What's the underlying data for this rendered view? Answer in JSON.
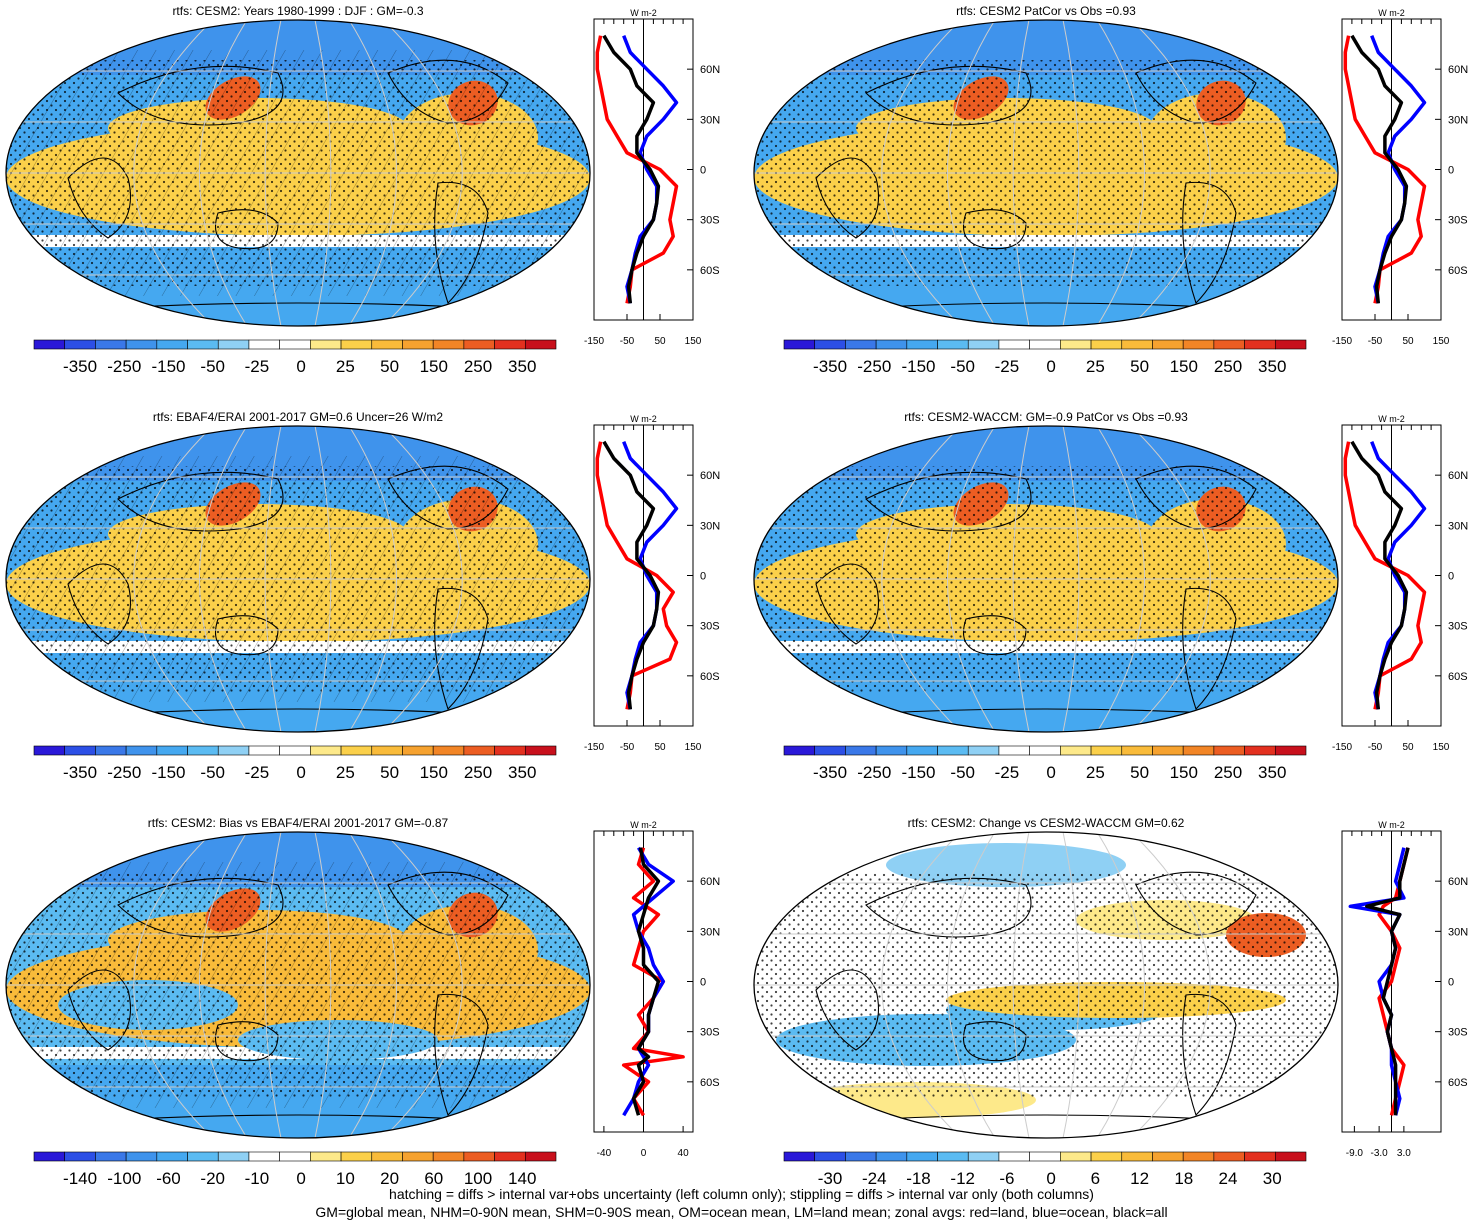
{
  "footer": {
    "line1": "hatching = diffs > internal var+obs uncertainty (left column only); stippling = diffs > internal var only (both columns)",
    "line2": "GM=global mean, NHM=0-90N mean, SHM=0-90S mean, OM=ocean mean, LM=land mean; zonal avgs: red=land, blue=ocean, black=all"
  },
  "palette": [
    "#2a18d8",
    "#2c4fe6",
    "#3a78e8",
    "#3f93ec",
    "#45a8f0",
    "#5bbbf2",
    "#8fd0f4",
    "#ffffff",
    "#ffffff",
    "#fde98a",
    "#fbd04a",
    "#f9bb3a",
    "#f6a22f",
    "#f28526",
    "#ec5d22",
    "#e3301f",
    "#c8101c"
  ],
  "zonal_colors": {
    "land": "#ff0000",
    "ocean": "#0000ff",
    "all": "#000000"
  },
  "chart_data": [
    {
      "type": "heatmap",
      "title": "rtfs: CESM2: Years 1980-1999 : DJF : GM=-0.3",
      "colorbar_labels": [
        "-350",
        "-250",
        "-150",
        "-50",
        "-25",
        "0",
        "25",
        "50",
        "150",
        "250",
        "350"
      ],
      "zonal": {
        "unit": "W m-2",
        "xlim": [
          -150,
          150
        ],
        "xticks": [
          "-150",
          "-50",
          "50",
          "150"
        ],
        "yticks": [
          "60N",
          "30N",
          "0",
          "30S",
          "60S"
        ],
        "lat": [
          -80,
          -70,
          -60,
          -50,
          -40,
          -30,
          -20,
          -10,
          0,
          10,
          20,
          30,
          40,
          50,
          60,
          70,
          80
        ],
        "land": [
          -50,
          -40,
          -35,
          60,
          90,
          80,
          90,
          100,
          50,
          -50,
          -80,
          -110,
          -120,
          -130,
          -140,
          -140,
          -130
        ],
        "ocean": [
          -40,
          -50,
          -35,
          -25,
          -10,
          30,
          40,
          40,
          10,
          -10,
          10,
          60,
          100,
          60,
          10,
          -40,
          -60
        ],
        "all": [
          -40,
          -45,
          -35,
          -20,
          0,
          30,
          40,
          45,
          20,
          -20,
          -20,
          10,
          30,
          -20,
          -40,
          -90,
          -120
        ]
      }
    },
    {
      "type": "heatmap",
      "title": "rtfs: CESM2 PatCor vs Obs =0.93",
      "colorbar_labels": [
        "-350",
        "-250",
        "-150",
        "-50",
        "-25",
        "0",
        "25",
        "50",
        "150",
        "250",
        "350"
      ],
      "zonal": {
        "unit": "W m-2",
        "xlim": [
          -150,
          150
        ],
        "xticks": [
          "-150",
          "-50",
          "50",
          "150"
        ],
        "yticks": [
          "60N",
          "30N",
          "0",
          "30S",
          "60S"
        ],
        "lat": [
          -80,
          -70,
          -60,
          -50,
          -40,
          -30,
          -20,
          -10,
          0,
          10,
          20,
          30,
          40,
          50,
          60,
          70,
          80
        ],
        "land": [
          -50,
          -40,
          -35,
          60,
          90,
          80,
          90,
          100,
          50,
          -50,
          -80,
          -110,
          -120,
          -130,
          -140,
          -140,
          -130
        ],
        "ocean": [
          -40,
          -50,
          -35,
          -25,
          -10,
          30,
          40,
          40,
          10,
          -10,
          10,
          60,
          100,
          60,
          10,
          -40,
          -60
        ],
        "all": [
          -40,
          -45,
          -35,
          -20,
          0,
          30,
          40,
          45,
          20,
          -20,
          -20,
          10,
          30,
          -20,
          -40,
          -90,
          -120
        ]
      }
    },
    {
      "type": "heatmap",
      "title": "rtfs: EBAF4/ERAI 2001-2017 GM=0.6 Uncer=26 W/m2",
      "colorbar_labels": [
        "-350",
        "-250",
        "-150",
        "-50",
        "-25",
        "0",
        "25",
        "50",
        "150",
        "250",
        "350"
      ],
      "zonal": {
        "unit": "W m-2",
        "xlim": [
          -150,
          150
        ],
        "xticks": [
          "-150",
          "-50",
          "50",
          "150"
        ],
        "yticks": [
          "60N",
          "30N",
          "0",
          "30S",
          "60S"
        ],
        "lat": [
          -80,
          -70,
          -60,
          -50,
          -40,
          -30,
          -20,
          -10,
          0,
          10,
          20,
          30,
          40,
          50,
          60,
          70,
          80
        ],
        "land": [
          -50,
          -40,
          -35,
          80,
          100,
          70,
          60,
          90,
          40,
          -50,
          -80,
          -110,
          -120,
          -130,
          -140,
          -140,
          -130
        ],
        "ocean": [
          -40,
          -50,
          -35,
          -25,
          -10,
          30,
          40,
          40,
          10,
          -10,
          10,
          60,
          100,
          60,
          10,
          -40,
          -60
        ],
        "all": [
          -40,
          -45,
          -35,
          -20,
          0,
          30,
          40,
          45,
          20,
          -20,
          -20,
          10,
          30,
          -20,
          -40,
          -90,
          -120
        ]
      }
    },
    {
      "type": "heatmap",
      "title": "rtfs: CESM2-WACCM: GM=-0.9 PatCor vs Obs =0.93",
      "colorbar_labels": [
        "-350",
        "-250",
        "-150",
        "-50",
        "-25",
        "0",
        "25",
        "50",
        "150",
        "250",
        "350"
      ],
      "zonal": {
        "unit": "W m-2",
        "xlim": [
          -150,
          150
        ],
        "xticks": [
          "-150",
          "-50",
          "50",
          "150"
        ],
        "yticks": [
          "60N",
          "30N",
          "0",
          "30S",
          "60S"
        ],
        "lat": [
          -80,
          -70,
          -60,
          -50,
          -40,
          -30,
          -20,
          -10,
          0,
          10,
          20,
          30,
          40,
          50,
          60,
          70,
          80
        ],
        "land": [
          -50,
          -40,
          -35,
          60,
          90,
          80,
          90,
          100,
          50,
          -50,
          -80,
          -110,
          -120,
          -130,
          -140,
          -140,
          -130
        ],
        "ocean": [
          -40,
          -50,
          -35,
          -25,
          -10,
          30,
          40,
          40,
          10,
          -10,
          10,
          60,
          100,
          60,
          10,
          -40,
          -60
        ],
        "all": [
          -40,
          -45,
          -35,
          -20,
          0,
          30,
          40,
          45,
          20,
          -20,
          -20,
          10,
          30,
          -20,
          -40,
          -90,
          -120
        ]
      }
    },
    {
      "type": "heatmap",
      "title": "rtfs: CESM2: Bias vs EBAF4/ERAI 2001-2017 GM=-0.87",
      "colorbar_labels": [
        "-140",
        "-100",
        "-60",
        "-20",
        "-10",
        "0",
        "10",
        "20",
        "60",
        "100",
        "140"
      ],
      "zonal": {
        "unit": "W m-2",
        "xlim": [
          -50,
          50
        ],
        "xticks": [
          "-40",
          "0",
          "40"
        ],
        "yticks": [
          "60N",
          "30N",
          "0",
          "30S",
          "60S"
        ],
        "lat": [
          -80,
          -70,
          -60,
          -50,
          -45,
          -40,
          -30,
          -20,
          -10,
          0,
          10,
          20,
          30,
          40,
          50,
          60,
          70,
          80
        ],
        "land": [
          0,
          -10,
          5,
          -20,
          40,
          -10,
          5,
          -5,
          10,
          20,
          -10,
          -5,
          0,
          15,
          -10,
          10,
          -5,
          0
        ],
        "ocean": [
          -20,
          -10,
          -5,
          5,
          0,
          -5,
          5,
          5,
          10,
          20,
          10,
          5,
          -5,
          -10,
          10,
          30,
          5,
          -5
        ],
        "all": [
          -5,
          -10,
          0,
          -5,
          5,
          -5,
          5,
          5,
          10,
          15,
          0,
          0,
          -5,
          0,
          5,
          15,
          0,
          -3
        ]
      }
    },
    {
      "type": "heatmap",
      "title": "rtfs: CESM2: Change vs CESM2-WACCM GM=0.62",
      "colorbar_labels": [
        "-30",
        "-24",
        "-18",
        "-12",
        "-6",
        "0",
        "6",
        "12",
        "18",
        "24",
        "30"
      ],
      "zonal": {
        "unit": "W m-2",
        "xlim": [
          -12,
          12
        ],
        "xticks": [
          "-9.0",
          "-3.0",
          "3.0"
        ],
        "yticks": [
          "60N",
          "30N",
          "0",
          "30S",
          "60S"
        ],
        "lat": [
          -80,
          -70,
          -60,
          -50,
          -40,
          -30,
          -20,
          -10,
          0,
          10,
          20,
          30,
          40,
          45,
          50,
          60,
          70,
          80
        ],
        "land": [
          0,
          1,
          2,
          3,
          0,
          -1,
          -2,
          -3,
          0,
          1,
          2,
          0,
          -3,
          -2,
          1,
          2,
          3,
          4
        ],
        "ocean": [
          1,
          2,
          1,
          0,
          0,
          -1,
          0,
          -2,
          -3,
          0,
          1,
          0,
          2,
          -10,
          3,
          1,
          2,
          3
        ],
        "all": [
          1,
          1,
          1,
          1,
          0,
          -1,
          0,
          -2,
          -1,
          0,
          1,
          0,
          2,
          -6,
          2,
          2,
          3,
          4
        ]
      }
    }
  ]
}
